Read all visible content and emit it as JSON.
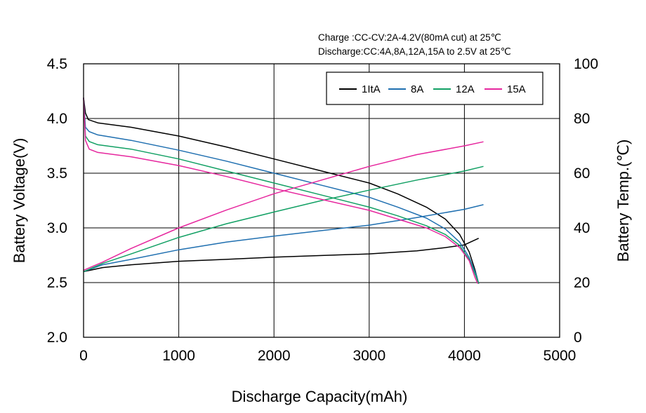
{
  "annotations": {
    "charge": "Charge :CC-CV:2A-4.2V(80mA cut) at 25℃",
    "discharge": "Discharge:CC:4A,8A,12A,15A  to 2.5V at 25℃"
  },
  "chart_data": {
    "type": "line",
    "title": "",
    "xlabel": "Discharge Capacity(mAh)",
    "ylabel": "Battery Voltage(V)",
    "y2label": "Battery Temp.(℃)",
    "xlim": [
      0,
      5000
    ],
    "ylim": [
      2.0,
      4.5
    ],
    "y2lim": [
      0,
      100
    ],
    "x_ticks": [
      "0",
      "1000",
      "2000",
      "3000",
      "4000",
      "5000"
    ],
    "y_ticks": [
      "2.0",
      "2.5",
      "3.0",
      "3.5",
      "4.0",
      "4.5"
    ],
    "y2_ticks": [
      "0",
      "20",
      "40",
      "60",
      "80",
      "100"
    ],
    "grid": true,
    "legend_position": "top-right",
    "series": [
      {
        "name": "1ItA",
        "color": "#000000",
        "voltage": [
          [
            0,
            4.19
          ],
          [
            20,
            4.05
          ],
          [
            50,
            3.99
          ],
          [
            150,
            3.96
          ],
          [
            500,
            3.92
          ],
          [
            1000,
            3.84
          ],
          [
            1500,
            3.74
          ],
          [
            2000,
            3.63
          ],
          [
            2500,
            3.52
          ],
          [
            3000,
            3.41
          ],
          [
            3300,
            3.31
          ],
          [
            3600,
            3.19
          ],
          [
            3800,
            3.08
          ],
          [
            3950,
            2.94
          ],
          [
            4050,
            2.78
          ],
          [
            4110,
            2.62
          ],
          [
            4150,
            2.49
          ]
        ],
        "temperature": [
          [
            0,
            24
          ],
          [
            200,
            25.5
          ],
          [
            500,
            26.5
          ],
          [
            1000,
            27.8
          ],
          [
            1500,
            28.5
          ],
          [
            2000,
            29.3
          ],
          [
            2500,
            29.9
          ],
          [
            3000,
            30.5
          ],
          [
            3500,
            31.6
          ],
          [
            3800,
            32.8
          ],
          [
            4000,
            33.8
          ],
          [
            4150,
            36.2
          ]
        ]
      },
      {
        "name": "8A",
        "color": "#1f6fb0",
        "voltage": [
          [
            0,
            4.19
          ],
          [
            20,
            3.92
          ],
          [
            60,
            3.88
          ],
          [
            150,
            3.85
          ],
          [
            500,
            3.8
          ],
          [
            1000,
            3.71
          ],
          [
            1500,
            3.61
          ],
          [
            2000,
            3.5
          ],
          [
            2500,
            3.39
          ],
          [
            3000,
            3.28
          ],
          [
            3300,
            3.19
          ],
          [
            3600,
            3.09
          ],
          [
            3800,
            2.99
          ],
          [
            3950,
            2.87
          ],
          [
            4050,
            2.73
          ],
          [
            4120,
            2.58
          ],
          [
            4150,
            2.49
          ]
        ],
        "temperature": [
          [
            0,
            24
          ],
          [
            200,
            26.5
          ],
          [
            500,
            28.5
          ],
          [
            1000,
            32
          ],
          [
            1500,
            34.8
          ],
          [
            2000,
            37
          ],
          [
            2500,
            39
          ],
          [
            3000,
            41
          ],
          [
            3500,
            43.8
          ],
          [
            4000,
            46.8
          ],
          [
            4200,
            48.5
          ]
        ]
      },
      {
        "name": "12A",
        "color": "#12a064",
        "voltage": [
          [
            0,
            4.19
          ],
          [
            20,
            3.84
          ],
          [
            60,
            3.79
          ],
          [
            150,
            3.76
          ],
          [
            500,
            3.72
          ],
          [
            1000,
            3.63
          ],
          [
            1500,
            3.52
          ],
          [
            2000,
            3.41
          ],
          [
            2500,
            3.3
          ],
          [
            3000,
            3.19
          ],
          [
            3300,
            3.11
          ],
          [
            3600,
            3.02
          ],
          [
            3800,
            2.94
          ],
          [
            3950,
            2.84
          ],
          [
            4050,
            2.71
          ],
          [
            4120,
            2.56
          ],
          [
            4150,
            2.49
          ]
        ],
        "temperature": [
          [
            0,
            24
          ],
          [
            200,
            27
          ],
          [
            500,
            30.5
          ],
          [
            1000,
            36.5
          ],
          [
            1500,
            41.5
          ],
          [
            2000,
            45.8
          ],
          [
            2500,
            50
          ],
          [
            3000,
            53.8
          ],
          [
            3500,
            57.5
          ],
          [
            4000,
            60.8
          ],
          [
            4200,
            62.5
          ]
        ]
      },
      {
        "name": "15A",
        "color": "#e6279e",
        "voltage": [
          [
            0,
            4.19
          ],
          [
            20,
            3.8
          ],
          [
            60,
            3.72
          ],
          [
            150,
            3.69
          ],
          [
            500,
            3.65
          ],
          [
            1000,
            3.57
          ],
          [
            1500,
            3.47
          ],
          [
            2000,
            3.36
          ],
          [
            2500,
            3.26
          ],
          [
            3000,
            3.16
          ],
          [
            3300,
            3.08
          ],
          [
            3600,
            3.0
          ],
          [
            3800,
            2.92
          ],
          [
            3950,
            2.82
          ],
          [
            4050,
            2.7
          ],
          [
            4110,
            2.55
          ],
          [
            4140,
            2.49
          ]
        ],
        "temperature": [
          [
            0,
            24.5
          ],
          [
            200,
            27.5
          ],
          [
            500,
            32.5
          ],
          [
            1000,
            40
          ],
          [
            1500,
            46.5
          ],
          [
            2000,
            52.5
          ],
          [
            2500,
            57.5
          ],
          [
            3000,
            62.5
          ],
          [
            3500,
            66.8
          ],
          [
            4000,
            70
          ],
          [
            4200,
            71.5
          ]
        ]
      }
    ]
  }
}
